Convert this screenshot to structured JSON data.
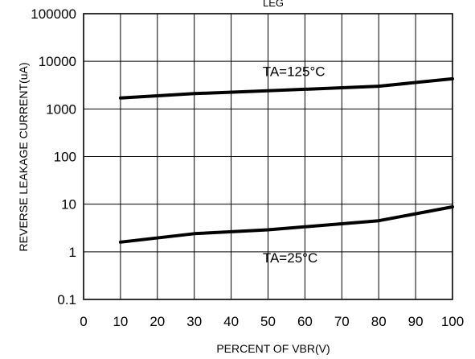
{
  "chart_data": {
    "type": "line",
    "title": "LEG",
    "xlabel": "PERCENT OF VBR(V)",
    "ylabel": "REVERSE LEAKAGE CURRENT(uA)",
    "xlim": [
      0,
      100
    ],
    "ylim": [
      0.1,
      100000
    ],
    "yscale": "log",
    "grid": true,
    "legend": "none",
    "x_ticks": [
      "0",
      "10",
      "20",
      "30",
      "40",
      "50",
      "60",
      "70",
      "80",
      "90",
      "100"
    ],
    "y_ticks": [
      "0.1",
      "1",
      "10",
      "100",
      "1000",
      "10000",
      "100000"
    ],
    "series": [
      {
        "name": "TA=125°C",
        "x": [
          10,
          30,
          50,
          80,
          100
        ],
        "y": [
          1700,
          2100,
          2400,
          3000,
          4300
        ]
      },
      {
        "name": "TA=25°C",
        "x": [
          10,
          30,
          50,
          80,
          100
        ],
        "y": [
          1.6,
          2.4,
          2.9,
          4.5,
          8.8
        ]
      }
    ],
    "annotations": [
      {
        "text": "TA=125°C",
        "x": 57,
        "y": 6200
      },
      {
        "text": "TA=25°C",
        "x": 56,
        "y": 0.75
      }
    ]
  }
}
